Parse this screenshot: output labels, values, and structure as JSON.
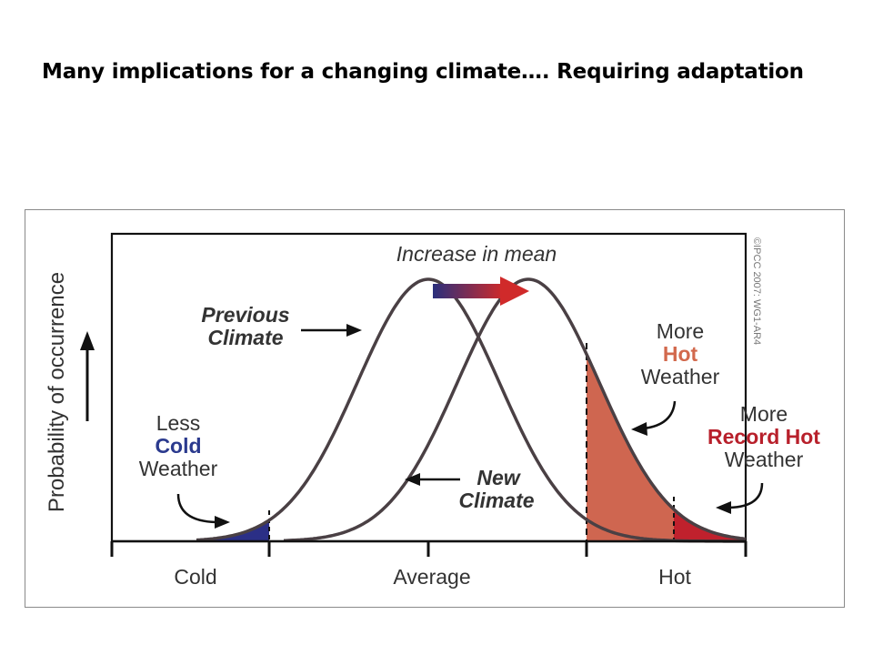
{
  "slide": {
    "title": "Many implications for a changing climate…. Requiring adaptation"
  },
  "figure": {
    "y_axis_label": "Probability of occurrence",
    "x_tick_labels": [
      "Cold",
      "Average",
      "Hot"
    ],
    "increase_label": "Increase in mean",
    "previous_label": [
      "Previous",
      "Climate"
    ],
    "new_label": [
      "New",
      "Climate"
    ],
    "less_cold": [
      "Less",
      "Cold",
      "Weather"
    ],
    "more_hot": [
      "More",
      "Hot",
      "Weather"
    ],
    "more_record_hot": [
      "More",
      "Record Hot",
      "Weather"
    ],
    "credit": "©IPCC 2007: WG1-AR4"
  },
  "colors": {
    "curve": "#4a4044",
    "cold_fill": "#2b2f86",
    "hot_fill": "#cf6650",
    "record_fill": "#c0212d",
    "cold_text": "#2b3a8e",
    "hot_text": "#d2694d",
    "record_text": "#b8202b",
    "text": "#333333",
    "accent_navy": "#2a2f7c",
    "accent_red": "#c52a2a"
  }
}
